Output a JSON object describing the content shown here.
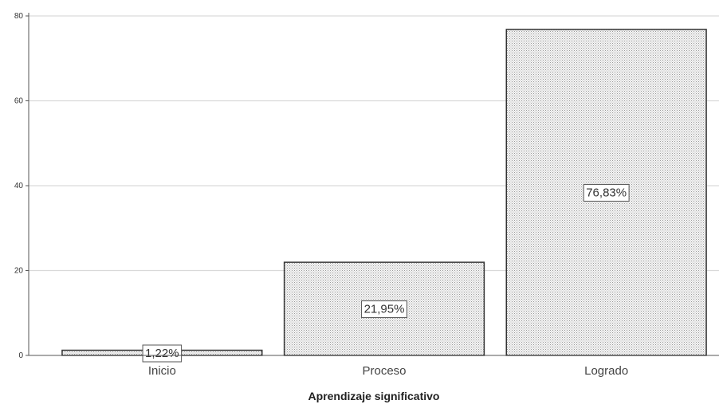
{
  "chart_data": {
    "type": "bar",
    "categories": [
      "Inicio",
      "Proceso",
      "Logrado"
    ],
    "values": [
      1.22,
      21.95,
      76.83
    ],
    "data_labels": [
      "1,22%",
      "21,95%",
      "76,83%"
    ],
    "title": "",
    "xlabel": "Aprendizaje significativo",
    "ylabel": "",
    "ylim": [
      0,
      80
    ],
    "yticks": [
      0,
      20,
      40,
      60,
      80
    ],
    "ytick_labels": [
      "0",
      "20",
      "40",
      "60",
      "80"
    ],
    "grid": true,
    "bar_fill": "dotted-hatch",
    "colors": {
      "bar_outline": "#333333",
      "bar_fill_bg": "#f4f4f4",
      "hatch_dot": "#9a9a9a",
      "grid": "#d9d9d9",
      "axis": "#555555"
    }
  }
}
